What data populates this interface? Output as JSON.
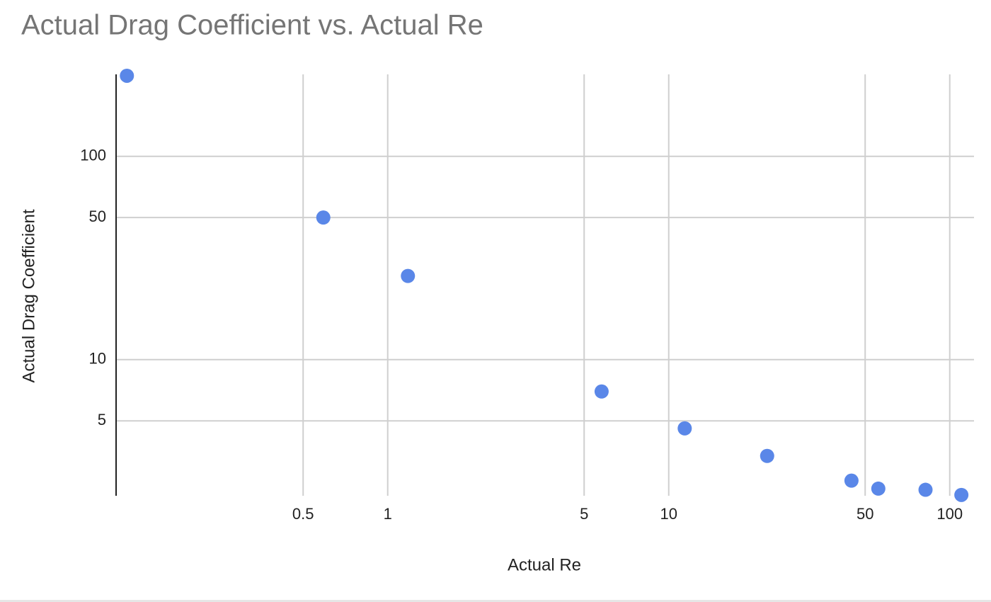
{
  "chart_data": {
    "type": "scatter",
    "title": "Actual Drag Coefficient vs. Actual Re",
    "x_label": "Actual Re",
    "y_label": "Actual Drag Coefficient",
    "x_log": true,
    "y_log": true,
    "grid": true,
    "xlim": [
      0.108,
      122
    ],
    "ylim": [
      2.14,
      253
    ],
    "xticks": [
      0.5,
      1,
      5,
      10,
      50,
      100
    ],
    "yticks": [
      5,
      10,
      50,
      100
    ],
    "series": [
      {
        "color": "#5a87e8",
        "x": [
          0.118,
          0.59,
          1.18,
          5.77,
          11.4,
          22.4,
          44.7,
          55.7,
          82,
          110
        ],
        "values": [
          249,
          50,
          25.8,
          6.97,
          4.59,
          3.36,
          2.54,
          2.32,
          2.29,
          2.16
        ]
      }
    ]
  }
}
